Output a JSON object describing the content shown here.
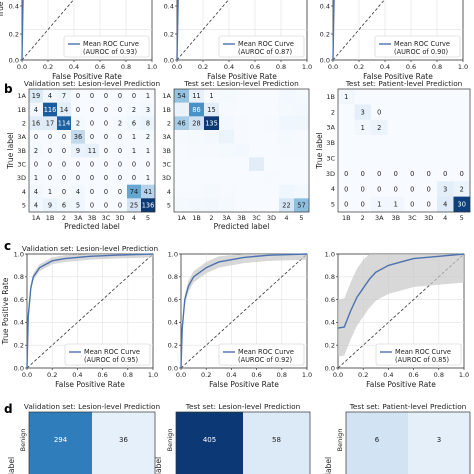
{
  "panel_labels": [
    "b",
    "c",
    "d"
  ],
  "chart_data": [
    {
      "id": "a1",
      "type": "line",
      "xlabel": "False Positive Rate",
      "ylabel": "True Positive Rate",
      "legend": {
        "line1": "Mean ROC Curve",
        "line2": "(AUROC of 0.93)",
        "placement": "bottom-right"
      },
      "xticks": [
        "0.0",
        "0.2",
        "0.4",
        "0.6",
        "0.8",
        "1.0"
      ],
      "yticks": [
        "0.4",
        "0.2",
        "0.0"
      ],
      "series": [
        {
          "x": [
            0,
            0.01,
            0.02,
            0.05,
            0.2,
            1.0
          ],
          "y": [
            0,
            0.5,
            0.8,
            0.93,
            0.98,
            1.0
          ]
        }
      ],
      "xlim": [
        0,
        1
      ],
      "ylim": [
        0,
        1
      ],
      "grid": true
    },
    {
      "id": "a2",
      "type": "line",
      "xlabel": "False Positive Rate",
      "ylabel": "",
      "legend": {
        "line1": "Mean ROC Curve",
        "line2": "(AUROC of 0.87)",
        "placement": "bottom-right"
      },
      "xticks": [
        "0.0",
        "0.2",
        "0.4",
        "0.6",
        "0.8",
        "1.0"
      ],
      "yticks": [
        "0.4",
        "0.2",
        "0.0"
      ],
      "series": [
        {
          "x": [
            0,
            0.01,
            0.02,
            0.06,
            0.25,
            1.0
          ],
          "y": [
            0,
            0.45,
            0.72,
            0.86,
            0.95,
            1.0
          ]
        }
      ],
      "xlim": [
        0,
        1
      ],
      "ylim": [
        0,
        1
      ],
      "grid": true
    },
    {
      "id": "a3",
      "type": "line",
      "xlabel": "False Positive Rate",
      "ylabel": "",
      "legend": {
        "line1": "Mean ROC Curve",
        "line2": "(AUROC of 0.90)",
        "placement": "bottom-right"
      },
      "xticks": [
        "0.0",
        "0.2",
        "0.4",
        "0.6",
        "0.8",
        "1.0"
      ],
      "yticks": [
        "0.4",
        "0.2",
        "0.0"
      ],
      "series": [
        {
          "x": [
            0,
            0.01,
            0.02,
            0.05,
            0.25,
            1.0
          ],
          "y": [
            0,
            0.5,
            0.75,
            0.9,
            0.97,
            1.0
          ]
        }
      ],
      "xlim": [
        0,
        1
      ],
      "ylim": [
        0,
        1
      ],
      "grid": true
    },
    {
      "id": "b1",
      "type": "heatmap",
      "title": "Validation set: Lesion-level Prediction",
      "xlabel": "Predicted label",
      "ylabel": "True label",
      "row_labels": [
        "1A",
        "1B",
        "2",
        "3A",
        "3B",
        "3C",
        "3D",
        "4",
        "5"
      ],
      "col_labels": [
        "1A",
        "1B",
        "2",
        "3A",
        "3B",
        "3C",
        "3D",
        "4",
        "5"
      ],
      "cells": [
        [
          "19",
          "4",
          "7",
          "0",
          "0",
          "0",
          "0",
          "0",
          "1"
        ],
        [
          "4",
          "116",
          "14",
          "0",
          "0",
          "0",
          "0",
          "2",
          "3"
        ],
        [
          "16",
          "17",
          "114",
          "2",
          "0",
          "0",
          "2",
          "6",
          "8"
        ],
        [
          "0",
          "0",
          "0",
          "36",
          "0",
          "0",
          "0",
          "1",
          "2"
        ],
        [
          "2",
          "0",
          "0",
          "9",
          "11",
          "0",
          "0",
          "1",
          "1"
        ],
        [
          "0",
          "0",
          "0",
          "0",
          "0",
          "0",
          "0",
          "0",
          "0"
        ],
        [
          "1",
          "0",
          "0",
          "0",
          "0",
          "0",
          "0",
          "0",
          "1"
        ],
        [
          "4",
          "1",
          "0",
          "4",
          "0",
          "0",
          "0",
          "74",
          "41"
        ],
        [
          "4",
          "9",
          "6",
          "5",
          "0",
          "0",
          "0",
          "25",
          "136"
        ]
      ],
      "values": [
        [
          19,
          4,
          7,
          0,
          0,
          0,
          0,
          0,
          1
        ],
        [
          4,
          116,
          14,
          0,
          0,
          0,
          0,
          2,
          3
        ],
        [
          16,
          17,
          114,
          2,
          0,
          0,
          2,
          6,
          8
        ],
        [
          0,
          0,
          0,
          36,
          0,
          0,
          0,
          1,
          2
        ],
        [
          2,
          0,
          0,
          9,
          11,
          0,
          0,
          1,
          1
        ],
        [
          0,
          0,
          0,
          0,
          0,
          0,
          0,
          0,
          0
        ],
        [
          1,
          0,
          0,
          0,
          0,
          0,
          0,
          0,
          1
        ],
        [
          4,
          1,
          0,
          4,
          0,
          0,
          0,
          74,
          41
        ],
        [
          4,
          9,
          6,
          5,
          0,
          0,
          0,
          25,
          136
        ]
      ],
      "vmax": 140
    },
    {
      "id": "b2",
      "type": "heatmap",
      "title": "Test set: Lesion-level Prediction",
      "xlabel": "Predicted label",
      "ylabel": "",
      "row_labels": [
        "1A",
        "1B",
        "2",
        "3A",
        "3B",
        "3C",
        "3D",
        "4",
        "5"
      ],
      "col_labels": [
        "1A",
        "1B",
        "2",
        "3A",
        "3B",
        "3C",
        "3D",
        "4",
        "5"
      ],
      "cells": [
        [
          "54",
          "11",
          "1",
          "",
          "",
          "",
          "",
          "",
          ""
        ],
        [
          "",
          "86",
          "15",
          "",
          "",
          "",
          "",
          "",
          ""
        ],
        [
          "46",
          "28",
          "135",
          "",
          "",
          "",
          "",
          "",
          ""
        ],
        [
          "",
          "",
          "",
          "",
          "",
          "",
          "",
          "",
          ""
        ],
        [
          "",
          "",
          "",
          "",
          "",
          "",
          "",
          "",
          ""
        ],
        [
          "",
          "",
          "",
          "",
          "",
          "",
          "",
          "",
          ""
        ],
        [
          "",
          "",
          "",
          "",
          "",
          "",
          "",
          "",
          ""
        ],
        [
          "",
          "",
          "",
          "",
          "",
          "",
          "",
          "",
          ""
        ],
        [
          "",
          "",
          "",
          "",
          "",
          "",
          "",
          "22",
          "57"
        ]
      ],
      "values": [
        [
          54,
          11,
          1,
          2,
          1,
          0,
          0,
          3,
          2
        ],
        [
          9,
          86,
          15,
          1,
          0,
          0,
          0,
          2,
          3
        ],
        [
          46,
          28,
          135,
          3,
          1,
          0,
          1,
          5,
          6
        ],
        [
          1,
          2,
          3,
          8,
          1,
          0,
          0,
          2,
          1
        ],
        [
          0,
          1,
          1,
          2,
          3,
          0,
          0,
          1,
          1
        ],
        [
          0,
          0,
          0,
          0,
          0,
          15,
          0,
          0,
          0
        ],
        [
          0,
          0,
          0,
          0,
          0,
          0,
          1,
          0,
          0
        ],
        [
          1,
          1,
          2,
          1,
          0,
          0,
          0,
          5,
          3
        ],
        [
          2,
          3,
          4,
          2,
          0,
          0,
          0,
          22,
          57
        ]
      ],
      "vmax": 140
    },
    {
      "id": "b3",
      "type": "heatmap",
      "title": "Test set: Patient-level Prediction",
      "xlabel": "",
      "ylabel": "True label",
      "row_labels": [
        "1B",
        "2",
        "3A",
        "3B",
        "3C",
        "3D",
        "4",
        "5"
      ],
      "col_labels": [
        "1B",
        "2",
        "3A",
        "3B",
        "3C",
        "3D",
        "4",
        "5"
      ],
      "cells": [
        [
          "1",
          "",
          "",
          "",
          "",
          "",
          "",
          ""
        ],
        [
          "",
          "3",
          "0",
          "",
          "",
          "",
          "",
          ""
        ],
        [
          "",
          "1",
          "2",
          "",
          "",
          "",
          "",
          ""
        ],
        [
          "",
          "",
          "",
          "",
          "",
          "",
          "",
          ""
        ],
        [
          "",
          "",
          "",
          "",
          "",
          "",
          "",
          ""
        ],
        [
          "0",
          "0",
          "0",
          "0",
          "0",
          "0",
          "0",
          "0"
        ],
        [
          "0",
          "0",
          "0",
          "0",
          "0",
          "0",
          "3",
          "2"
        ],
        [
          "0",
          "0",
          "1",
          "1",
          "0",
          "0",
          "4",
          "30"
        ]
      ],
      "values": [
        [
          1,
          0,
          0,
          0,
          0,
          0,
          0,
          0
        ],
        [
          0,
          3,
          0,
          0,
          0,
          0,
          0,
          0
        ],
        [
          0,
          1,
          2,
          0,
          0,
          0,
          0,
          0
        ],
        [
          0,
          0,
          0,
          0,
          0,
          0,
          0,
          0
        ],
        [
          0,
          0,
          0,
          0,
          0,
          0,
          0,
          0
        ],
        [
          0,
          0,
          0,
          0,
          0,
          0,
          0,
          0
        ],
        [
          0,
          0,
          0,
          0,
          0,
          0,
          3,
          2
        ],
        [
          0,
          0,
          1,
          1,
          0,
          0,
          4,
          30
        ]
      ],
      "vmax": 32
    },
    {
      "id": "c1",
      "type": "line",
      "title": "Validation set: Lesion-level Prediction",
      "xlabel": "False Positive Rate",
      "ylabel": "True Positive Rate",
      "legend": {
        "line1": "Mean ROC Curve",
        "line2": "(AUROC of 0.95)",
        "placement": "bottom-right"
      },
      "xticks": [
        "0.0",
        "0.2",
        "0.4",
        "0.6",
        "0.8",
        "1.0"
      ],
      "yticks": [
        "0.0",
        "0.2",
        "0.4",
        "0.6",
        "0.8",
        "1.0"
      ],
      "series": [
        {
          "x": [
            0,
            0.01,
            0.03,
            0.05,
            0.1,
            0.2,
            0.3,
            0.5,
            0.7,
            1.0
          ],
          "y": [
            0,
            0.45,
            0.7,
            0.8,
            0.88,
            0.94,
            0.96,
            0.98,
            0.99,
            1.0
          ],
          "band": 0.03
        }
      ],
      "xlim": [
        0,
        1
      ],
      "ylim": [
        0,
        1
      ],
      "grid": true
    },
    {
      "id": "c2",
      "type": "line",
      "title": "",
      "xlabel": "False Positive Rate",
      "ylabel": "",
      "legend": {
        "line1": "Mean ROC Curve",
        "line2": "(AUROC of 0.92)",
        "placement": "bottom-right"
      },
      "xticks": [
        "0.0",
        "0.2",
        "0.4",
        "0.6",
        "0.8",
        "1.0"
      ],
      "yticks": [
        "0.0",
        "0.2",
        "0.4",
        "0.6",
        "0.8",
        "1.0"
      ],
      "series": [
        {
          "x": [
            0,
            0.01,
            0.03,
            0.06,
            0.1,
            0.2,
            0.3,
            0.5,
            0.7,
            1.0
          ],
          "y": [
            0,
            0.35,
            0.6,
            0.72,
            0.8,
            0.88,
            0.93,
            0.97,
            0.99,
            1.0
          ],
          "band": 0.05
        }
      ],
      "xlim": [
        0,
        1
      ],
      "ylim": [
        0,
        1
      ],
      "grid": true
    },
    {
      "id": "c3",
      "type": "line",
      "title": "",
      "xlabel": "False Positive Rate",
      "ylabel": "",
      "legend": {
        "line1": "Mean ROC Curve",
        "line2": "(AUROC of 0.85)",
        "placement": "bottom-right"
      },
      "xticks": [
        "0.0",
        "0.2",
        "0.4",
        "0.6",
        "0.8",
        "1.0"
      ],
      "yticks": [
        "0.0",
        "0.2",
        "0.4",
        "0.6",
        "0.8",
        "1.0"
      ],
      "series": [
        {
          "x": [
            0,
            0.05,
            0.1,
            0.15,
            0.2,
            0.25,
            0.3,
            0.4,
            0.5,
            0.6,
            0.8,
            1.0
          ],
          "y": [
            0.35,
            0.36,
            0.5,
            0.62,
            0.7,
            0.78,
            0.84,
            0.9,
            0.93,
            0.96,
            0.98,
            1.0
          ],
          "band": 0.25
        }
      ],
      "xlim": [
        0,
        1
      ],
      "ylim": [
        0,
        1
      ],
      "grid": true
    },
    {
      "id": "d1",
      "type": "heatmap",
      "title": "Validation set: Lesion-level Prediction",
      "ylabel": "label",
      "row_labels": [
        "Benign"
      ],
      "cells": [
        [
          "294",
          "36"
        ]
      ],
      "values": [
        [
          294,
          36
        ]
      ],
      "vmax": 420
    },
    {
      "id": "d2",
      "type": "heatmap",
      "title": "Test set: Lesion-level Prediction",
      "ylabel": "label",
      "row_labels": [
        "Benign"
      ],
      "cells": [
        [
          "405",
          "58"
        ]
      ],
      "values": [
        [
          405,
          58
        ]
      ],
      "vmax": 420
    },
    {
      "id": "d3",
      "type": "heatmap",
      "title": "Test set: Patient-level Prediction",
      "ylabel": "label",
      "row_labels": [
        "Benign"
      ],
      "cells": [
        [
          "6",
          "3"
        ]
      ],
      "values": [
        [
          6,
          3
        ]
      ],
      "vmax": 32
    }
  ]
}
